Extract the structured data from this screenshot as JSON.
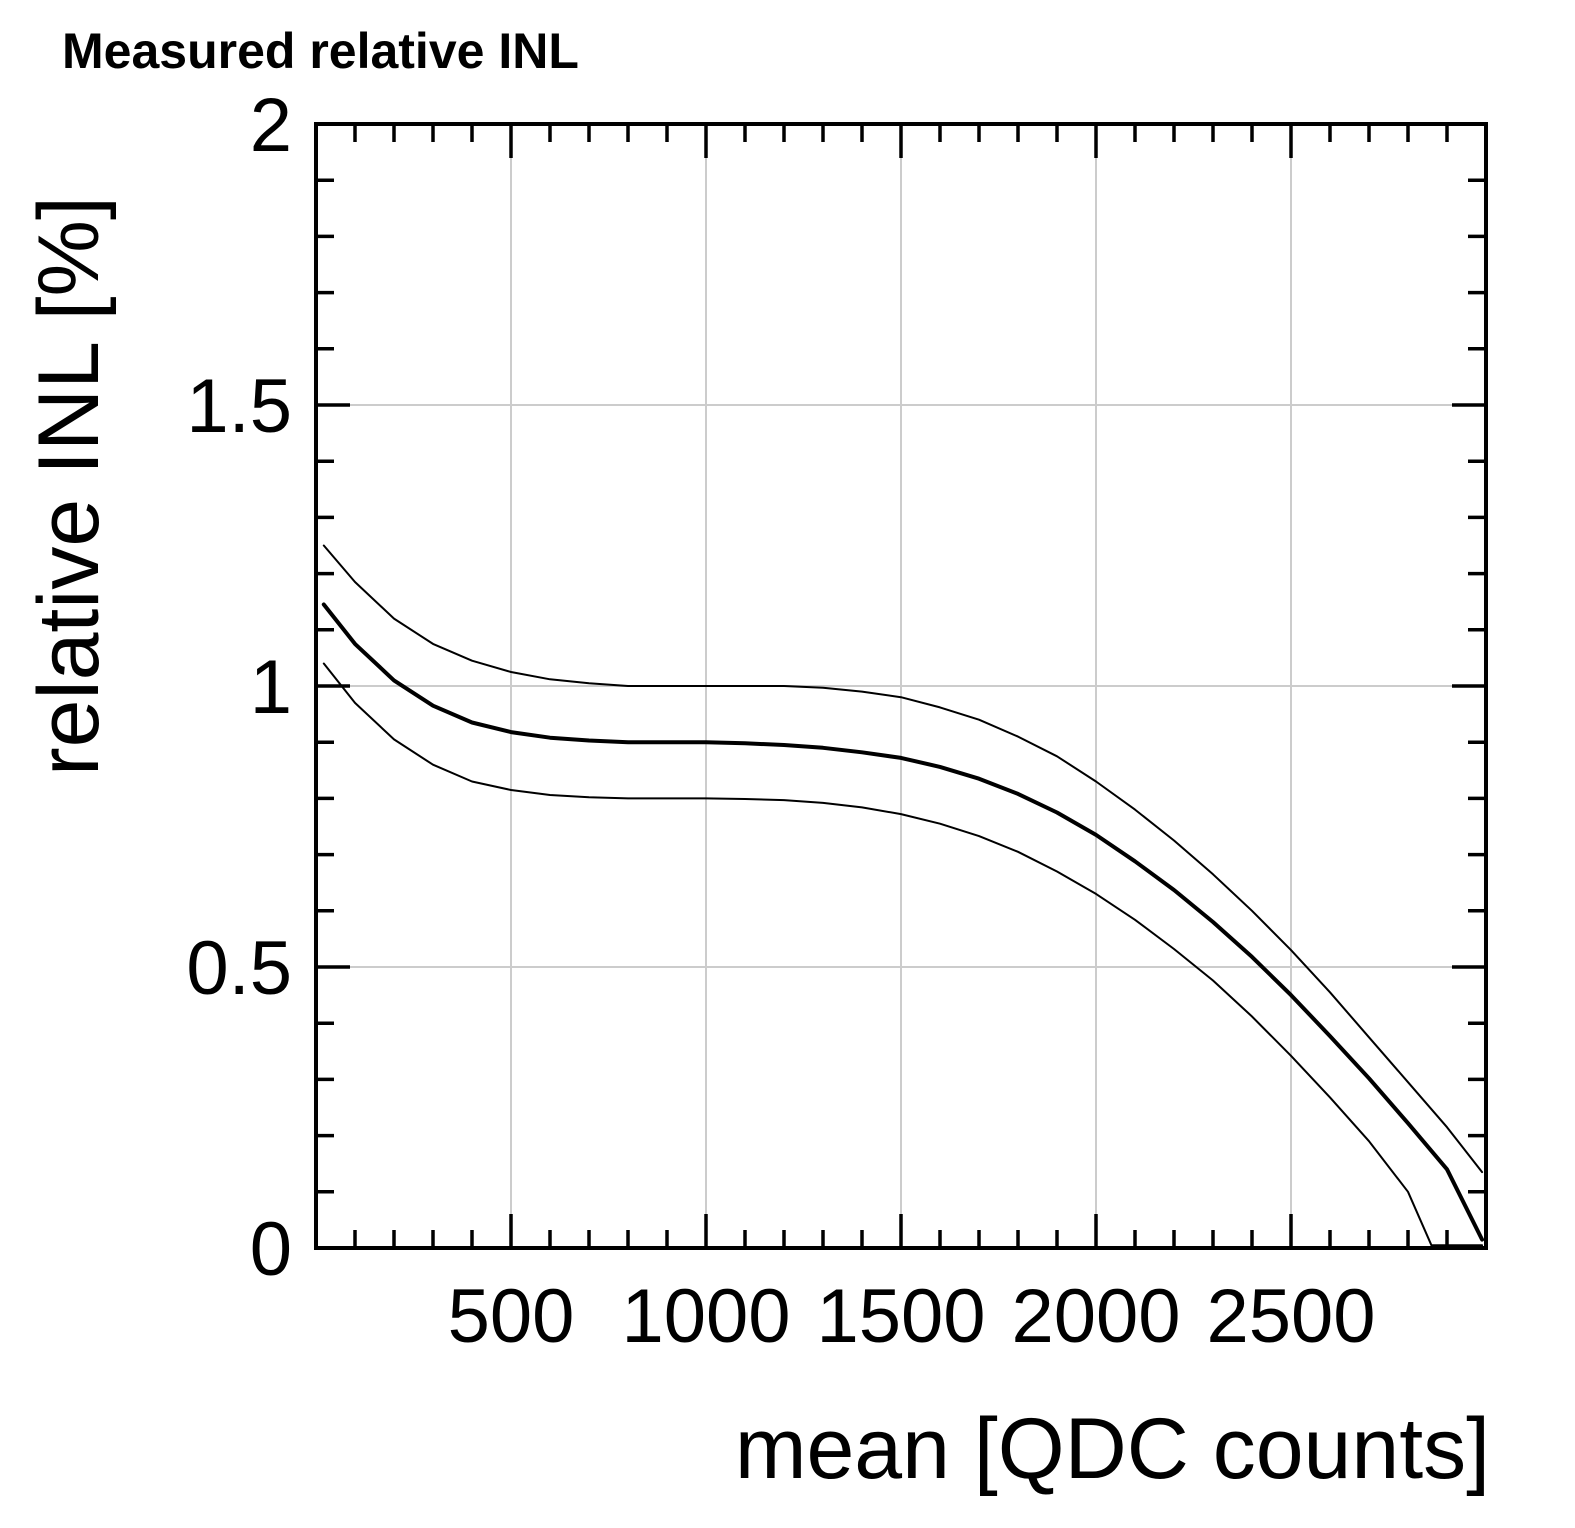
{
  "chart_data": {
    "type": "line",
    "title": "Measured relative INL",
    "xlabel": "mean [QDC counts]",
    "ylabel": "relative INL [%]",
    "xlim": [
      0,
      3000
    ],
    "ylim": [
      0,
      2
    ],
    "x_ticks": [
      500,
      1000,
      1500,
      2000,
      2500
    ],
    "x_tick_labels": [
      "500",
      "1000",
      "1500",
      "2000",
      "2500"
    ],
    "x_minor_step": 100,
    "y_ticks": [
      0,
      0.5,
      1,
      1.5,
      2
    ],
    "y_tick_labels": [
      "0",
      "0.5",
      "1",
      "1.5",
      "2"
    ],
    "y_minor_step": 0.1,
    "grid": true,
    "series": [
      {
        "name": "upper",
        "style": "thin",
        "x": [
          20,
          100,
          200,
          300,
          400,
          500,
          600,
          700,
          800,
          900,
          1000,
          1100,
          1200,
          1300,
          1400,
          1500,
          1600,
          1700,
          1800,
          1900,
          2000,
          2100,
          2200,
          2300,
          2400,
          2500,
          2600,
          2700,
          2800,
          2900,
          2990
        ],
        "y": [
          1.25,
          1.185,
          1.12,
          1.075,
          1.045,
          1.025,
          1.012,
          1.005,
          1.0,
          1.0,
          1.0,
          1.0,
          1.0,
          0.997,
          0.99,
          0.98,
          0.962,
          0.94,
          0.91,
          0.875,
          0.83,
          0.78,
          0.725,
          0.665,
          0.6,
          0.53,
          0.455,
          0.375,
          0.295,
          0.215,
          0.135
        ]
      },
      {
        "name": "central",
        "style": "thick",
        "x": [
          20,
          100,
          200,
          300,
          400,
          500,
          600,
          700,
          800,
          900,
          1000,
          1100,
          1200,
          1300,
          1400,
          1500,
          1600,
          1700,
          1800,
          1900,
          2000,
          2100,
          2200,
          2300,
          2400,
          2500,
          2600,
          2700,
          2800,
          2900,
          2990
        ],
        "y": [
          1.145,
          1.075,
          1.01,
          0.965,
          0.935,
          0.918,
          0.908,
          0.903,
          0.9,
          0.9,
          0.9,
          0.898,
          0.895,
          0.89,
          0.882,
          0.872,
          0.856,
          0.835,
          0.808,
          0.775,
          0.735,
          0.688,
          0.637,
          0.58,
          0.518,
          0.45,
          0.377,
          0.302,
          0.222,
          0.14,
          0.015
        ]
      },
      {
        "name": "lower",
        "style": "thin",
        "x": [
          20,
          100,
          200,
          300,
          400,
          500,
          600,
          700,
          800,
          900,
          1000,
          1100,
          1200,
          1300,
          1400,
          1500,
          1600,
          1700,
          1800,
          1900,
          2000,
          2100,
          2200,
          2300,
          2400,
          2500,
          2600,
          2700,
          2800,
          2860,
          2990
        ],
        "y": [
          1.04,
          0.97,
          0.905,
          0.86,
          0.83,
          0.815,
          0.806,
          0.802,
          0.8,
          0.8,
          0.8,
          0.799,
          0.797,
          0.792,
          0.784,
          0.772,
          0.755,
          0.733,
          0.705,
          0.67,
          0.63,
          0.584,
          0.532,
          0.476,
          0.412,
          0.342,
          0.268,
          0.19,
          0.1,
          0.005,
          0.005
        ]
      }
    ]
  }
}
